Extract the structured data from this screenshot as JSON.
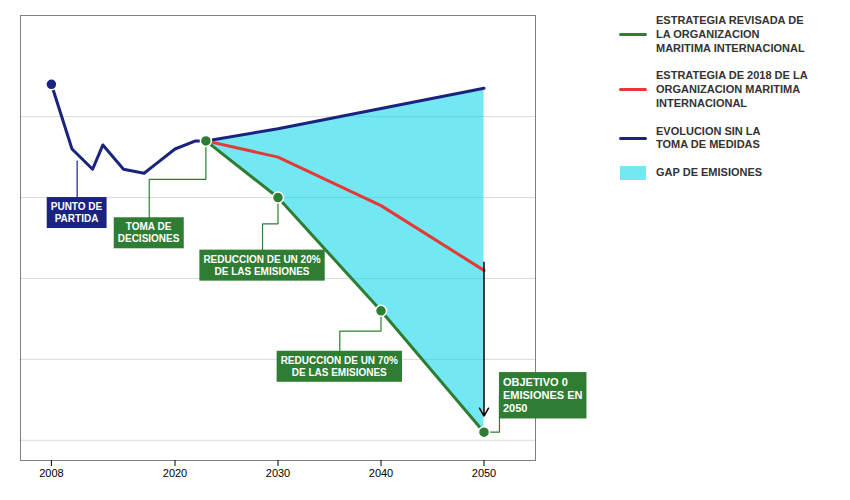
{
  "chart_data": {
    "type": "line",
    "series": [
      {
        "name": "ESTRATEGIA REVISADA DE\nLA ORGANIZACION\nMARITIMA INTERNACIONAL",
        "color": "#2e7d32",
        "x": [
          2023,
          2030,
          2040,
          2050
        ],
        "values": [
          0.74,
          0.6,
          0.32,
          0.02
        ]
      },
      {
        "name": "ESTRATEGIA DE 2018 DE LA\nORGANIZACION MARITIMA\nINTERNACIONAL",
        "color": "#e53935",
        "x": [
          2023,
          2030,
          2040,
          2050
        ],
        "values": [
          0.74,
          0.7,
          0.58,
          0.42
        ]
      },
      {
        "name": "EVOLUCION SIN LA\nTOMA DE MEDIDAS",
        "color": "#1a237e",
        "x": [
          2008,
          2010,
          2012,
          2013,
          2015,
          2017,
          2018,
          2020,
          2022,
          2023,
          2030,
          2040,
          2050
        ],
        "values": [
          0.88,
          0.72,
          0.67,
          0.73,
          0.67,
          0.66,
          0.68,
          0.72,
          0.74,
          0.74,
          0.77,
          0.82,
          0.87
        ]
      },
      {
        "name": "GAP DE EMISIONES",
        "type": "area",
        "color": "#00d4e8",
        "x": [
          2023,
          2030,
          2040,
          2050
        ],
        "values_lower": [
          0.74,
          0.6,
          0.32,
          0.02
        ],
        "values_upper": [
          0.74,
          0.77,
          0.82,
          0.87
        ]
      }
    ],
    "markers": [
      {
        "x": 2008,
        "y": 0.88,
        "color": "#1a237e"
      },
      {
        "x": 2023,
        "y": 0.74,
        "color": "#2e7d32"
      },
      {
        "x": 2030,
        "y": 0.6,
        "color": "#2e7d32"
      },
      {
        "x": 2040,
        "y": 0.32,
        "color": "#2e7d32"
      },
      {
        "x": 2050,
        "y": 0.02,
        "color": "#2e7d32"
      }
    ],
    "annotations": [
      {
        "text": "PUNTO DE\nPARTIDA",
        "x": 2010.5,
        "y": 0.6,
        "color": "#1a237e",
        "point_x": 2010.5,
        "point_y": 0.69
      },
      {
        "text": "TOMA DE\nDECISIONES",
        "x": 2017.5,
        "y": 0.55,
        "color": "#2e7d32",
        "point_x": 2023,
        "point_y": 0.74
      },
      {
        "text": "REDUCCION DE UN 20%\nDE LAS EMISIONES",
        "x": 2028.5,
        "y": 0.47,
        "color": "#2e7d32",
        "point_x": 2030,
        "point_y": 0.6
      },
      {
        "text": "REDUCCION DE UN 70%\nDE LAS EMISIONES",
        "x": 2036,
        "y": 0.22,
        "color": "#2e7d32",
        "point_x": 2040,
        "point_y": 0.32
      },
      {
        "text": "OBJETIVO 0\nEMISIONES EN\n2050",
        "x": 2051.5,
        "y": 0.11,
        "color": "#2e7d32",
        "point_x": 2050,
        "point_y": 0.02
      }
    ],
    "arrows": [
      {
        "x": 2050,
        "y_start": 0.44,
        "y_end": 0.06,
        "color": "#000000"
      }
    ],
    "xlim": [
      2005,
      2055
    ],
    "ylim": [
      -0.05,
      1.05
    ],
    "xticks": [
      2008,
      2020,
      2030,
      2040,
      2050
    ],
    "yticks": [
      0,
      0.2,
      0.4,
      0.6,
      0.8
    ],
    "grid": true,
    "tick_labels": "x",
    "legend": "right"
  }
}
